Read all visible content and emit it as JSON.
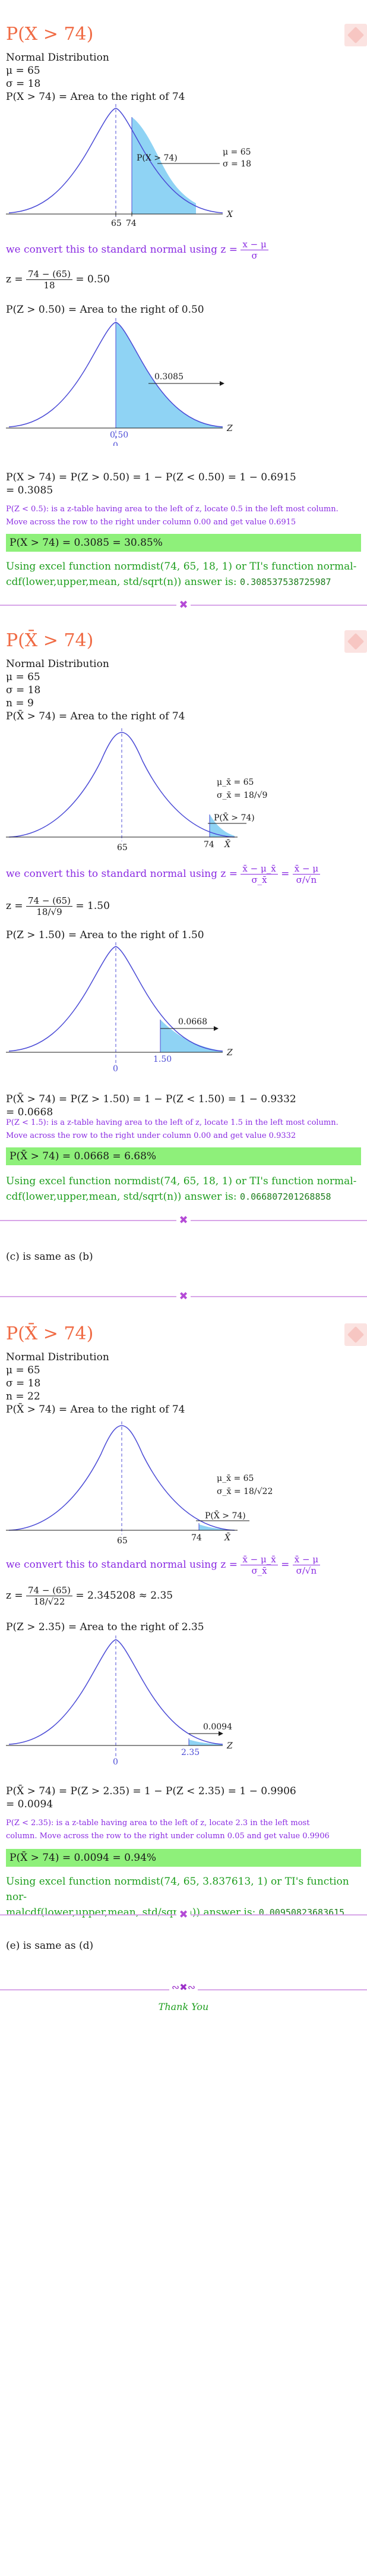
{
  "part_a": {
    "title": "P(X > 74)",
    "dist": "Normal Distribution",
    "mu": "μ = 65",
    "sigma": "σ = 18",
    "area_stmt": "P(X > 74) = Area to the right of 74",
    "g1": {
      "mean_tick": "65",
      "val_tick": "74",
      "label": "P(X > 74)",
      "mu_lbl": "μ = 65",
      "sigma_lbl": "σ = 18",
      "axis": "X"
    },
    "convert_pre": "we convert this to standard normal using",
    "convert_z": "z =",
    "convert_num": "x − μ",
    "convert_den": "σ",
    "z_lhs": "z =",
    "z_num": "74 − (65)",
    "z_den": "18",
    "z_rhs": "= 0.50",
    "z_area": "P(Z > 0.50) = Area to the right of 0.50",
    "g2": {
      "mean_tick": "0",
      "val_tick": "0.50",
      "label": "0.3085",
      "axis": "Z"
    },
    "result_line1": "P(X > 74) = P(Z > 0.50) = 1 − P(Z < 0.50) = 1 − 0.6915",
    "result_line2": "= 0.3085",
    "note1": "P(Z < 0.5): is a z-table having area to the left of z, locate 0.5 in the left most column.",
    "note2": "Move across the row to the right under column 0.00 and get value 0.6915",
    "answer": "P(X > 74) = 0.3085 = 30.85%",
    "excel1": "Using excel function normdist(74, 65, 18, 1) or TI's function normal-",
    "excel2": "cdf(lower,upper,mean, std/sqrt(n)) answer is:",
    "excel_val": "0.308537538725987"
  },
  "part_b": {
    "title": "P(X̄ > 74)",
    "dist": "Normal Distribution",
    "mu": "μ = 65",
    "sigma": "σ = 18",
    "n": "n = 9",
    "area_stmt": "P(X̄ > 74) = Area to the right of 74",
    "g1": {
      "mean_tick": "65",
      "val_tick": "74",
      "label": "P(X̄ > 74)",
      "mu_lbl": "μ_x̄ = 65",
      "sigma_lbl": "σ_x̄ = 18/√9",
      "axis": "X̄"
    },
    "convert_pre": "we convert this to standard normal using",
    "convert_z": "z =",
    "convert_num1": "x̄ − μ_x̄",
    "convert_den1": "σ_x̄",
    "convert_eq": "=",
    "convert_num2": "x̄ − μ",
    "convert_den2": "σ/√n",
    "z_lhs": "z =",
    "z_num": "74 − (65)",
    "z_den": "18/√9",
    "z_rhs": "= 1.50",
    "z_area": "P(Z > 1.50) = Area to the right of 1.50",
    "g2": {
      "mean_tick": "0",
      "val_tick": "1.50",
      "label": "0.0668",
      "axis": "Z"
    },
    "result_line1": "P(X̄ > 74) = P(Z > 1.50) = 1 − P(Z < 1.50) = 1 − 0.9332",
    "result_line2": "= 0.0668",
    "note1": "P(Z < 1.5): is a z-table having area to the left of z, locate 1.5 in the left most column.",
    "note2": "Move across the row to the right under column 0.00 and get value 0.9332",
    "answer": "P(X̄ > 74) = 0.0668 = 6.68%",
    "excel1": "Using excel function normdist(74, 65, 18, 1) or TI's function normal-",
    "excel2": "cdf(lower,upper,mean, std/sqrt(n)) answer is:",
    "excel_val": "0.066807201268858"
  },
  "part_c": "(c) is same as (b)",
  "part_d": {
    "title": "P(X̄ > 74)",
    "dist": "Normal Distribution",
    "mu": "μ = 65",
    "sigma": "σ = 18",
    "n": "n = 22",
    "area_stmt": "P(X̄ > 74) = Area to the right of 74",
    "g1": {
      "mean_tick": "65",
      "val_tick": "74",
      "label": "P(X̄ > 74)",
      "mu_lbl": "μ_x̄ = 65",
      "sigma_lbl": "σ_x̄ = 18/√22",
      "axis": "X̄"
    },
    "convert_pre": "we convert this to standard normal using",
    "convert_z": "z =",
    "convert_num1": "x̄ − μ_x̄",
    "convert_den1": "σ_x̄",
    "convert_eq": "=",
    "convert_num2": "x̄ − μ",
    "convert_den2": "σ/√n",
    "z_lhs": "z =",
    "z_num": "74 − (65)",
    "z_den": "18/√22",
    "z_rhs": "= 2.345208 ≈ 2.35",
    "z_area": "P(Z > 2.35) = Area to the right of 2.35",
    "g2": {
      "mean_tick": "0",
      "val_tick": "2.35",
      "label": "0.0094",
      "axis": "Z"
    },
    "result_line1": "P(X̄ > 74) = P(Z > 2.35) = 1 − P(Z < 2.35) = 1 − 0.9906",
    "result_line2": "= 0.0094",
    "note1": "P(Z < 2.35): is a z-table having area to the left of z, locate 2.3 in the left most",
    "note2": "column. Move across the row to the right under column 0.05 and get value 0.9906",
    "answer": "P(X̄ > 74) = 0.0094 = 0.94%",
    "excel1": "Using excel function normdist(74, 65, 3.837613, 1) or TI's function nor-",
    "excel2": "malcdf(lower,upper,mean, std/sqrt(n)) answer is:",
    "excel_val": "0.00950823683615"
  },
  "part_e": "(e) is same as (d)",
  "thanks": "Thank You",
  "colors": {
    "curve": "#4b4bd6",
    "fill": "#8fd3f4",
    "accent": "#f06a43",
    "purple": "#8a2be2",
    "green_box": "#8ef07a",
    "green_text": "#1e9e1e"
  }
}
